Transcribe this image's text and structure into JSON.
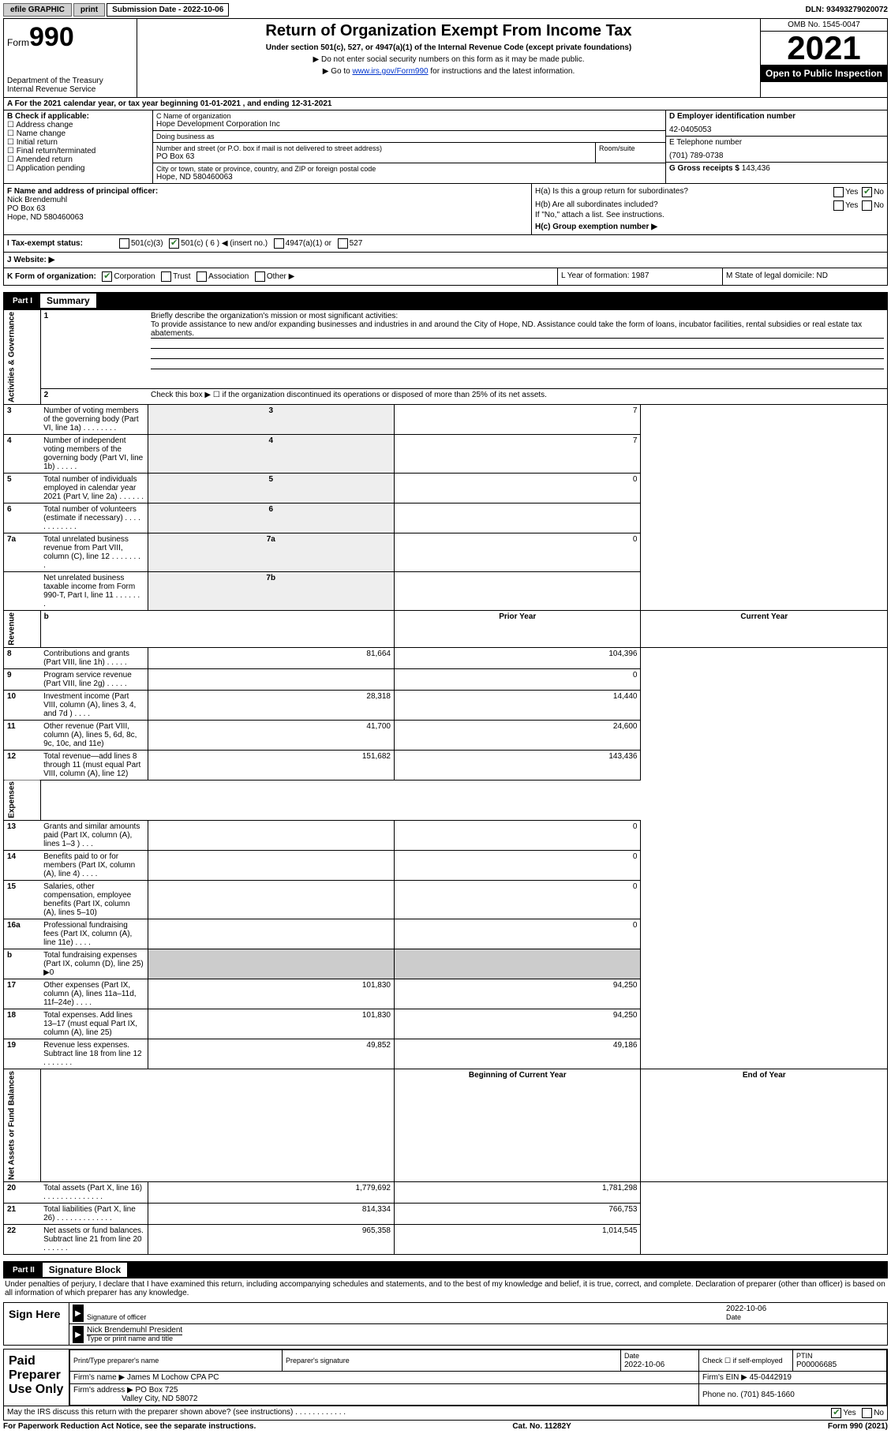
{
  "topbar": {
    "efile": "efile GRAPHIC",
    "print": "print",
    "submission_label": "Submission Date - 2022-10-06",
    "dln": "DLN: 93493279020072"
  },
  "header": {
    "form_word": "Form",
    "form_num": "990",
    "dept": "Department of the Treasury\nInternal Revenue Service",
    "title": "Return of Organization Exempt From Income Tax",
    "subtitle": "Under section 501(c), 527, or 4947(a)(1) of the Internal Revenue Code (except private foundations)",
    "note1": "▶ Do not enter social security numbers on this form as it may be made public.",
    "note2_pre": "▶ Go to ",
    "note2_link": "www.irs.gov/Form990",
    "note2_post": " for instructions and the latest information.",
    "omb": "OMB No. 1545-0047",
    "year": "2021",
    "open": "Open to Public Inspection"
  },
  "rowA": "A For the 2021 calendar year, or tax year beginning 01-01-2021   , and ending 12-31-2021",
  "sectionB": {
    "label": "B Check if applicable:",
    "opts": [
      "Address change",
      "Name change",
      "Initial return",
      "Final return/terminated",
      "Amended return",
      "Application pending"
    ]
  },
  "sectionC": {
    "name_lbl": "C Name of organization",
    "name": "Hope Development Corporation Inc",
    "dba_lbl": "Doing business as",
    "dba": "",
    "addr_lbl": "Number and street (or P.O. box if mail is not delivered to street address)",
    "room_lbl": "Room/suite",
    "addr": "PO Box 63",
    "city_lbl": "City or town, state or province, country, and ZIP or foreign postal code",
    "city": "Hope, ND  580460063"
  },
  "sectionD": {
    "ein_lbl": "D Employer identification number",
    "ein": "42-0405053",
    "tel_lbl": "E Telephone number",
    "tel": "(701) 789-0738",
    "gross_lbl": "G Gross receipts $",
    "gross": "143,436"
  },
  "sectionF": {
    "lbl": "F  Name and address of principal officer:",
    "name": "Nick Brendemuhl",
    "addr1": "PO Box 63",
    "addr2": "Hope, ND  580460063"
  },
  "sectionH": {
    "ha": "H(a)  Is this a group return for subordinates?",
    "hb": "H(b)  Are all subordinates included?",
    "hb_note": "If \"No,\" attach a list. See instructions.",
    "hc": "H(c)  Group exemption number ▶",
    "yes": "Yes",
    "no": "No"
  },
  "rowI": {
    "lbl": "I  Tax-exempt status:",
    "o1": "501(c)(3)",
    "o2": "501(c) ( 6 ) ◀ (insert no.)",
    "o3": "4947(a)(1) or",
    "o4": "527"
  },
  "rowJ": "J  Website: ▶",
  "rowK": {
    "lbl": "K Form of organization:",
    "o1": "Corporation",
    "o2": "Trust",
    "o3": "Association",
    "o4": "Other ▶"
  },
  "rowL": "L Year of formation: 1987",
  "rowM": "M State of legal domicile: ND",
  "partI": {
    "label": "Part I",
    "title": "Summary"
  },
  "summary": {
    "side1": "Activities & Governance",
    "line1_lbl": "Briefly describe the organization's mission or most significant activities:",
    "line1_text": "To provide assistance to new and/or expanding businesses and industries in and around the City of Hope, ND. Assistance could take the form of loans, incubator facilities, rental subsidies or real estate tax abatements.",
    "line2": "Check this box ▶ ☐ if the organization discontinued its operations or disposed of more than 25% of its net assets.",
    "rows_gov": [
      {
        "n": "3",
        "d": "Number of voting members of the governing body (Part VI, line 1a)   .     .     .     .     .     .     .     .",
        "box": "3",
        "v": "7"
      },
      {
        "n": "4",
        "d": "Number of independent voting members of the governing body (Part VI, line 1b)   .     .     .     .     .",
        "box": "4",
        "v": "7"
      },
      {
        "n": "5",
        "d": "Total number of individuals employed in calendar year 2021 (Part V, line 2a)   .     .     .     .     .     .",
        "box": "5",
        "v": "0"
      },
      {
        "n": "6",
        "d": "Total number of volunteers (estimate if necessary)    .     .     .     .     .     .     .     .     .     .     .     .",
        "box": "6",
        "v": ""
      },
      {
        "n": "7a",
        "d": "Total unrelated business revenue from Part VIII, column (C), line 12   .     .     .     .     .     .     .     .",
        "box": "7a",
        "v": "0"
      },
      {
        "n": "",
        "d": "Net unrelated business taxable income from Form 990-T, Part I, line 11   .     .     .     .     .     .     .",
        "box": "7b",
        "v": ""
      }
    ],
    "b_lbl": "b",
    "hdr_prior": "Prior Year",
    "hdr_current": "Current Year",
    "side2": "Revenue",
    "rows_rev": [
      {
        "n": "8",
        "d": "Contributions and grants (Part VIII, line 1h)    .     .     .     .     .",
        "p": "81,664",
        "c": "104,396"
      },
      {
        "n": "9",
        "d": "Program service revenue (Part VIII, line 2g)    .     .     .     .     .",
        "p": "",
        "c": "0"
      },
      {
        "n": "10",
        "d": "Investment income (Part VIII, column (A), lines 3, 4, and 7d )    .     .     .     .",
        "p": "28,318",
        "c": "14,440"
      },
      {
        "n": "11",
        "d": "Other revenue (Part VIII, column (A), lines 5, 6d, 8c, 9c, 10c, and 11e)",
        "p": "41,700",
        "c": "24,600"
      },
      {
        "n": "12",
        "d": "Total revenue—add lines 8 through 11 (must equal Part VIII, column (A), line 12)",
        "p": "151,682",
        "c": "143,436"
      }
    ],
    "side3": "Expenses",
    "rows_exp": [
      {
        "n": "13",
        "d": "Grants and similar amounts paid (Part IX, column (A), lines 1–3 )   .     .     .",
        "p": "",
        "c": "0"
      },
      {
        "n": "14",
        "d": "Benefits paid to or for members (Part IX, column (A), line 4)   .     .     .     .",
        "p": "",
        "c": "0"
      },
      {
        "n": "15",
        "d": "Salaries, other compensation, employee benefits (Part IX, column (A), lines 5–10)",
        "p": "",
        "c": "0"
      },
      {
        "n": "16a",
        "d": "Professional fundraising fees (Part IX, column (A), line 11e)   .     .     .     .",
        "p": "",
        "c": "0"
      },
      {
        "n": "b",
        "d": "Total fundraising expenses (Part IX, column (D), line 25) ▶0",
        "p": "shade",
        "c": "shade"
      },
      {
        "n": "17",
        "d": "Other expenses (Part IX, column (A), lines 11a–11d, 11f–24e)   .     .     .     .",
        "p": "101,830",
        "c": "94,250"
      },
      {
        "n": "18",
        "d": "Total expenses. Add lines 13–17 (must equal Part IX, column (A), line 25)",
        "p": "101,830",
        "c": "94,250"
      },
      {
        "n": "19",
        "d": "Revenue less expenses. Subtract line 18 from line 12   .     .     .     .     .     .     .",
        "p": "49,852",
        "c": "49,186"
      }
    ],
    "hdr_boy": "Beginning of Current Year",
    "hdr_eoy": "End of Year",
    "side4": "Net Assets or Fund Balances",
    "rows_net": [
      {
        "n": "20",
        "d": "Total assets (Part X, line 16)   .     .     .     .     .     .     .     .     .     .     .     .     .     .",
        "p": "1,779,692",
        "c": "1,781,298"
      },
      {
        "n": "21",
        "d": "Total liabilities (Part X, line 26)   .     .     .     .     .     .     .     .     .     .     .     .     .",
        "p": "814,334",
        "c": "766,753"
      },
      {
        "n": "22",
        "d": "Net assets or fund balances. Subtract line 21 from line 20   .     .     .     .     .     .",
        "p": "965,358",
        "c": "1,014,545"
      }
    ]
  },
  "partII": {
    "label": "Part II",
    "title": "Signature Block"
  },
  "sig": {
    "decl": "Under penalties of perjury, I declare that I have examined this return, including accompanying schedules and statements, and to the best of my knowledge and belief, it is true, correct, and complete. Declaration of preparer (other than officer) is based on all information of which preparer has any knowledge.",
    "sign_here": "Sign Here",
    "sig_officer": "Signature of officer",
    "date": "Date",
    "sig_date": "2022-10-06",
    "name_title": "Nick Brendemuhl  President",
    "type_lbl": "Type or print name and title",
    "paid": "Paid Preparer Use Only",
    "prep_name_lbl": "Print/Type preparer's name",
    "prep_sig_lbl": "Preparer's signature",
    "prep_date_lbl": "Date",
    "prep_date": "2022-10-06",
    "check_lbl": "Check ☐ if self-employed",
    "ptin_lbl": "PTIN",
    "ptin": "P00006685",
    "firm_name_lbl": "Firm's name    ▶",
    "firm_name": "James M Lochow CPA PC",
    "firm_ein_lbl": "Firm's EIN ▶",
    "firm_ein": "45-0442919",
    "firm_addr_lbl": "Firm's address ▶",
    "firm_addr": "PO Box 725",
    "firm_city": "Valley City, ND  58072",
    "phone_lbl": "Phone no.",
    "phone": "(701) 845-1660",
    "discuss": "May the IRS discuss this return with the preparer shown above? (see instructions)   .     .     .     .     .     .     .     .     .     .     .     .",
    "yes": "Yes",
    "no": "No"
  },
  "footer": {
    "left": "For Paperwork Reduction Act Notice, see the separate instructions.",
    "center": "Cat. No. 11282Y",
    "right": "Form 990 (2021)"
  }
}
